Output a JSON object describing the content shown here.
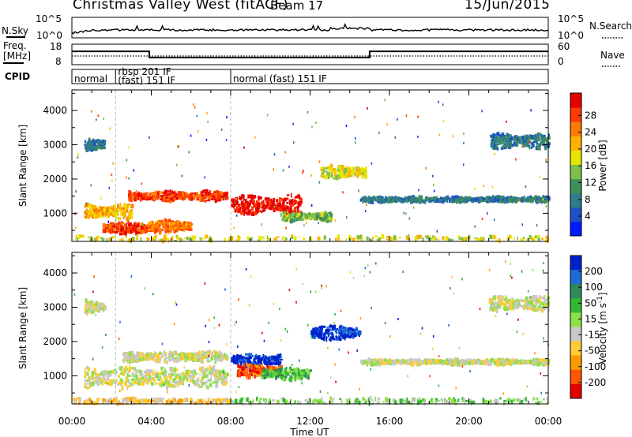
{
  "header": {
    "title": "Christmas Valley West (fitACF)",
    "beam": "Beam 17",
    "date": "15/Jun/2015"
  },
  "summary_panels": {
    "nsky_label": "N.Sky",
    "nsearch_label": "N.Search",
    "freq_label_1": "Freq.",
    "freq_label_2": "[MHz]",
    "nave_label": "Nave",
    "cpid_label": "CPID",
    "nsky_ticks": [
      "10^5",
      "10^0"
    ],
    "nsearch_ticks": [
      "10^5",
      "10^0"
    ],
    "freq_ticks": [
      "18",
      "8"
    ],
    "nave_ticks": [
      "60",
      "0"
    ],
    "cpid_segments": [
      {
        "line1": "normal",
        "line2": "",
        "start": 0,
        "end": 2.2
      },
      {
        "line1": "rbsp 201 IF",
        "line2": "(fast) 151 IF",
        "start": 2.2,
        "end": 8.0
      },
      {
        "line1": "normal (fast) 151 IF",
        "line2": "",
        "start": 8.0,
        "end": 24
      }
    ],
    "freq_steps": [
      {
        "start": 0,
        "end": 3.9,
        "value": 14.5
      },
      {
        "start": 3.9,
        "end": 15.0,
        "value": 11.5
      },
      {
        "start": 15.0,
        "end": 24,
        "value": 14.5
      }
    ]
  },
  "chart_data": [
    {
      "type": "heatmap",
      "name": "power",
      "ylabel": "Slant Range [km]",
      "xlabel": "",
      "xlim": [
        0,
        24
      ],
      "ylim": [
        180,
        4600
      ],
      "x_ticks": [
        0,
        4,
        8,
        12,
        16,
        20,
        24
      ],
      "y_ticks": [
        1000,
        2000,
        3000,
        4000
      ],
      "colorbar": {
        "label": "Power [dB]",
        "ticks": [
          "4",
          "8",
          "12",
          "16",
          "20",
          "24",
          "28"
        ],
        "colors": [
          "#0018ff",
          "#1e50c8",
          "#2e7d87",
          "#3f8f5a",
          "#7cbf4a",
          "#e6e600",
          "#ffb000",
          "#ff7a00",
          "#ff3a00",
          "#e60000"
        ]
      },
      "features": [
        {
          "region": "band",
          "x_start": 0.6,
          "x_end": 3.0,
          "y_center": 1050,
          "thickness": 350,
          "level": 6
        },
        {
          "region": "band",
          "x_start": 1.5,
          "x_end": 4.4,
          "y_center": 560,
          "thickness": 300,
          "level": 8
        },
        {
          "region": "band",
          "x_start": 3.8,
          "x_end": 6.0,
          "y_center": 620,
          "thickness": 280,
          "level": 7
        },
        {
          "region": "band",
          "x_start": 2.8,
          "x_end": 7.8,
          "y_center": 1500,
          "thickness": 240,
          "level": 8
        },
        {
          "region": "band",
          "x_start": 8.0,
          "x_end": 11.5,
          "y_center": 1250,
          "thickness": 450,
          "level": 9
        },
        {
          "region": "band",
          "x_start": 10.5,
          "x_end": 13.0,
          "y_center": 900,
          "thickness": 200,
          "level": 4
        },
        {
          "region": "band",
          "x_start": 14.5,
          "x_end": 24.0,
          "y_center": 1400,
          "thickness": 120,
          "level": 2
        },
        {
          "region": "band",
          "x_start": 0.6,
          "x_end": 1.6,
          "y_center": 3000,
          "thickness": 300,
          "level": 2
        },
        {
          "region": "band",
          "x_start": 21.0,
          "x_end": 24.0,
          "y_center": 3100,
          "thickness": 350,
          "level": 2
        },
        {
          "region": "band",
          "x_start": 12.5,
          "x_end": 14.8,
          "y_center": 2200,
          "thickness": 300,
          "level": 5
        },
        {
          "region": "floor",
          "x_start": 0,
          "x_end": 24.0,
          "y_center": 260,
          "thickness": 120,
          "level": 5
        }
      ]
    },
    {
      "type": "heatmap",
      "name": "velocity",
      "ylabel": "Slant Range [km]",
      "xlabel": "Time UT",
      "xlim": [
        0,
        24
      ],
      "ylim": [
        180,
        4600
      ],
      "x_ticks": [
        0,
        4,
        8,
        12,
        16,
        20,
        24
      ],
      "x_tick_labels": [
        "00:00",
        "04:00",
        "08:00",
        "12:00",
        "16:00",
        "20:00",
        "00:00"
      ],
      "y_ticks": [
        1000,
        2000,
        3000,
        4000
      ],
      "colorbar": {
        "label": "Velocity [m s^-1]",
        "ticks": [
          "200",
          "100",
          "50",
          "15",
          "-15",
          "-50",
          "-100",
          "-200"
        ],
        "colors": [
          "#0022cc",
          "#1f6bd6",
          "#2e8b57",
          "#33b833",
          "#8be04a",
          "#c8c8c8",
          "#ffcc33",
          "#ff9900",
          "#ff5500",
          "#e60000"
        ]
      },
      "features": [
        {
          "region": "band",
          "x_start": 0.6,
          "x_end": 7.8,
          "y_center": 950,
          "thickness": 500,
          "level": 5
        },
        {
          "region": "band",
          "x_start": 2.5,
          "x_end": 7.8,
          "y_center": 1550,
          "thickness": 250,
          "level": 5
        },
        {
          "region": "band",
          "x_start": 8.0,
          "x_end": 10.5,
          "y_center": 1450,
          "thickness": 300,
          "level": 0
        },
        {
          "region": "band",
          "x_start": 8.3,
          "x_end": 10.5,
          "y_center": 1150,
          "thickness": 300,
          "level": 8
        },
        {
          "region": "band",
          "x_start": 9.5,
          "x_end": 12.0,
          "y_center": 1050,
          "thickness": 300,
          "level": 3
        },
        {
          "region": "band",
          "x_start": 14.5,
          "x_end": 24.0,
          "y_center": 1400,
          "thickness": 120,
          "level": 5
        },
        {
          "region": "band",
          "x_start": 12.0,
          "x_end": 14.5,
          "y_center": 2250,
          "thickness": 350,
          "level": 0
        },
        {
          "region": "band",
          "x_start": 0.6,
          "x_end": 1.6,
          "y_center": 3000,
          "thickness": 300,
          "level": 5
        },
        {
          "region": "band",
          "x_start": 21.0,
          "x_end": 24.0,
          "y_center": 3100,
          "thickness": 350,
          "level": 5
        },
        {
          "region": "floor",
          "x_start": 0,
          "x_end": 8.0,
          "y_center": 260,
          "thickness": 140,
          "level": 6
        },
        {
          "region": "floor",
          "x_start": 8.0,
          "x_end": 24.0,
          "y_center": 260,
          "thickness": 140,
          "level": 4
        }
      ]
    }
  ]
}
